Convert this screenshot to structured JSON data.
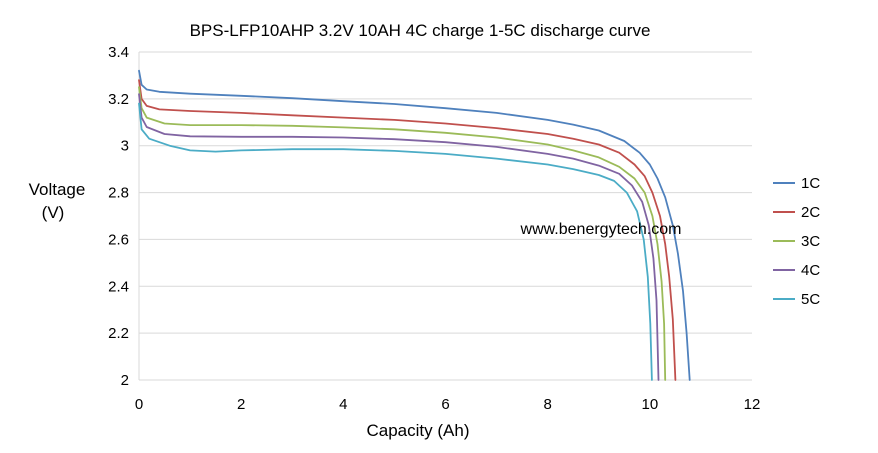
{
  "chart_data": {
    "type": "line",
    "title": "BPS-LFP10AHP 3.2V 10AH 4C charge 1-5C discharge curve",
    "xlabel": "Capacity (Ah)",
    "ylabel_line1": "Voltage",
    "ylabel_line2": "(V)",
    "xlim": [
      0,
      12
    ],
    "ylim": [
      2,
      3.4
    ],
    "xticks": [
      0,
      2,
      4,
      6,
      8,
      10,
      12
    ],
    "yticks": [
      2,
      2.2,
      2.4,
      2.6,
      2.8,
      3,
      3.2,
      3.4
    ],
    "ytick_labels": [
      "2",
      "2.2",
      "2.4",
      "2.6",
      "2.8",
      "3",
      "3.2",
      "3.4"
    ],
    "grid": "horizontal",
    "legend_position": "right",
    "annotation": "www.benergytech.com",
    "series": [
      {
        "name": "1C",
        "color": "#4F81BD",
        "points": [
          [
            0,
            3.32
          ],
          [
            0.05,
            3.26
          ],
          [
            0.15,
            3.24
          ],
          [
            0.4,
            3.23
          ],
          [
            1,
            3.222
          ],
          [
            2,
            3.213
          ],
          [
            3,
            3.203
          ],
          [
            4,
            3.19
          ],
          [
            5,
            3.178
          ],
          [
            6,
            3.16
          ],
          [
            7,
            3.14
          ],
          [
            8,
            3.11
          ],
          [
            8.5,
            3.09
          ],
          [
            9,
            3.065
          ],
          [
            9.5,
            3.02
          ],
          [
            9.8,
            2.97
          ],
          [
            10,
            2.92
          ],
          [
            10.15,
            2.86
          ],
          [
            10.3,
            2.78
          ],
          [
            10.45,
            2.66
          ],
          [
            10.55,
            2.54
          ],
          [
            10.65,
            2.38
          ],
          [
            10.72,
            2.2
          ],
          [
            10.78,
            2.0
          ]
        ]
      },
      {
        "name": "2C",
        "color": "#C0504D",
        "points": [
          [
            0,
            3.28
          ],
          [
            0.05,
            3.2
          ],
          [
            0.15,
            3.17
          ],
          [
            0.4,
            3.155
          ],
          [
            1,
            3.148
          ],
          [
            2,
            3.14
          ],
          [
            3,
            3.13
          ],
          [
            4,
            3.12
          ],
          [
            5,
            3.11
          ],
          [
            6,
            3.095
          ],
          [
            7,
            3.075
          ],
          [
            8,
            3.05
          ],
          [
            8.5,
            3.03
          ],
          [
            9,
            3.005
          ],
          [
            9.4,
            2.97
          ],
          [
            9.7,
            2.92
          ],
          [
            9.9,
            2.87
          ],
          [
            10.05,
            2.8
          ],
          [
            10.2,
            2.7
          ],
          [
            10.3,
            2.58
          ],
          [
            10.38,
            2.44
          ],
          [
            10.45,
            2.26
          ],
          [
            10.5,
            2.0
          ]
        ]
      },
      {
        "name": "3C",
        "color": "#9BBB59",
        "points": [
          [
            0,
            3.25
          ],
          [
            0.05,
            3.16
          ],
          [
            0.15,
            3.12
          ],
          [
            0.5,
            3.095
          ],
          [
            1,
            3.088
          ],
          [
            2,
            3.088
          ],
          [
            3,
            3.085
          ],
          [
            4,
            3.078
          ],
          [
            5,
            3.07
          ],
          [
            6,
            3.055
          ],
          [
            7,
            3.035
          ],
          [
            8,
            3.005
          ],
          [
            8.5,
            2.98
          ],
          [
            9,
            2.95
          ],
          [
            9.4,
            2.91
          ],
          [
            9.7,
            2.86
          ],
          [
            9.9,
            2.8
          ],
          [
            10.05,
            2.7
          ],
          [
            10.15,
            2.58
          ],
          [
            10.23,
            2.42
          ],
          [
            10.28,
            2.24
          ],
          [
            10.3,
            2.0
          ]
        ]
      },
      {
        "name": "4C",
        "color": "#8064A2",
        "points": [
          [
            0,
            3.22
          ],
          [
            0.05,
            3.12
          ],
          [
            0.15,
            3.08
          ],
          [
            0.5,
            3.05
          ],
          [
            1,
            3.04
          ],
          [
            2,
            3.038
          ],
          [
            3,
            3.038
          ],
          [
            4,
            3.035
          ],
          [
            5,
            3.028
          ],
          [
            6,
            3.015
          ],
          [
            7,
            2.995
          ],
          [
            8,
            2.965
          ],
          [
            8.5,
            2.945
          ],
          [
            9,
            2.915
          ],
          [
            9.4,
            2.88
          ],
          [
            9.65,
            2.83
          ],
          [
            9.85,
            2.76
          ],
          [
            9.98,
            2.66
          ],
          [
            10.07,
            2.52
          ],
          [
            10.13,
            2.34
          ],
          [
            10.17,
            2.0
          ]
        ]
      },
      {
        "name": "5C",
        "color": "#4BACC6",
        "points": [
          [
            0,
            3.18
          ],
          [
            0.05,
            3.07
          ],
          [
            0.2,
            3.03
          ],
          [
            0.6,
            3.0
          ],
          [
            1,
            2.98
          ],
          [
            1.5,
            2.975
          ],
          [
            2,
            2.98
          ],
          [
            3,
            2.985
          ],
          [
            4,
            2.985
          ],
          [
            5,
            2.978
          ],
          [
            6,
            2.965
          ],
          [
            7,
            2.945
          ],
          [
            8,
            2.92
          ],
          [
            8.5,
            2.9
          ],
          [
            9,
            2.875
          ],
          [
            9.3,
            2.85
          ],
          [
            9.55,
            2.8
          ],
          [
            9.75,
            2.72
          ],
          [
            9.88,
            2.6
          ],
          [
            9.96,
            2.44
          ],
          [
            10.01,
            2.24
          ],
          [
            10.04,
            2.0
          ]
        ]
      }
    ]
  }
}
